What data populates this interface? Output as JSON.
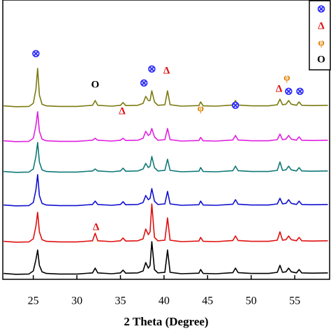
{
  "chart_data": {
    "type": "line",
    "xlabel": "2 Theta (Degree)",
    "xlim": [
      21.5,
      59
    ],
    "xticks": [
      25,
      30,
      35,
      40,
      45,
      50,
      55
    ],
    "ylim": [
      0,
      100
    ],
    "x": [
      21.6,
      23,
      24.5,
      25.0,
      25.3,
      25.5,
      25.7,
      26.0,
      26.5,
      28,
      30,
      31.8,
      32.1,
      32.4,
      34,
      35.0,
      35.3,
      35.6,
      37,
      37.6,
      37.9,
      38.2,
      38.4,
      38.6,
      38.9,
      39.3,
      40.1,
      40.4,
      40.7,
      42,
      44.0,
      44.2,
      44.5,
      46,
      47.9,
      48.2,
      48.5,
      50,
      52,
      53.0,
      53.3,
      53.6,
      54.0,
      54.3,
      54.6,
      55.2,
      55.5,
      55.8,
      57,
      58.8
    ],
    "series": [
      {
        "color": "#000000",
        "values": [
          2.1,
          1.8,
          1.9,
          3,
          7,
          10.5,
          5,
          2.7,
          2.1,
          1.9,
          1.9,
          2.3,
          4,
          2.3,
          2,
          2.3,
          3.3,
          2.2,
          2.3,
          3,
          6,
          4,
          5,
          13.5,
          3.5,
          2.3,
          2.5,
          10.5,
          2.5,
          2,
          2.2,
          3.5,
          2.1,
          2,
          2.4,
          4,
          2.4,
          2.1,
          2.1,
          2.5,
          5,
          2.5,
          2.7,
          4,
          2.7,
          2.3,
          3.5,
          2.3,
          2.2,
          2.3
        ]
      },
      {
        "color": "#e01010",
        "values": [
          13.6,
          13.3,
          13.4,
          14.5,
          19,
          24,
          17,
          14.2,
          13.6,
          13.4,
          13.4,
          13.8,
          16.5,
          13.8,
          13.5,
          13.8,
          14.8,
          13.7,
          13.8,
          14.5,
          18,
          16,
          17,
          27,
          15,
          13.8,
          14,
          22,
          14,
          13.5,
          13.7,
          15,
          13.6,
          13.5,
          13.9,
          15.5,
          13.9,
          13.6,
          13.6,
          14,
          17,
          14,
          14.2,
          15.5,
          14.2,
          13.8,
          15,
          13.8,
          13.7,
          13.8
        ]
      },
      {
        "color": "#1010d0",
        "values": [
          26.6,
          26.3,
          26.4,
          27.5,
          32,
          37.5,
          30,
          27.2,
          26.6,
          26.4,
          26.4,
          26.8,
          28,
          26.8,
          26.5,
          26.8,
          27.8,
          26.7,
          26.8,
          27.5,
          30,
          28.5,
          29,
          32.5,
          28,
          26.8,
          27,
          31.5,
          27,
          26.5,
          26.7,
          28,
          26.6,
          26.5,
          26.9,
          28.5,
          26.9,
          26.6,
          26.6,
          27,
          29,
          27,
          27.2,
          28.5,
          27.2,
          26.8,
          28,
          26.8,
          26.7,
          26.8
        ]
      },
      {
        "color": "#107878",
        "values": [
          38.6,
          38.3,
          38.4,
          39.5,
          44,
          49,
          42,
          39.2,
          38.6,
          38.4,
          38.4,
          38.8,
          39.5,
          38.8,
          38.5,
          38.8,
          39.8,
          38.7,
          38.8,
          39.5,
          41.5,
          40,
          40.5,
          44,
          40,
          38.8,
          39,
          43,
          39,
          38.5,
          38.7,
          40,
          38.6,
          38.5,
          38.9,
          40.5,
          38.9,
          38.6,
          38.6,
          39,
          42,
          39,
          39.2,
          40.5,
          39.2,
          38.8,
          40,
          38.8,
          38.7,
          38.8
        ]
      },
      {
        "color": "#e020e0",
        "values": [
          49.6,
          49.3,
          49.4,
          50.5,
          55,
          60,
          53,
          50.2,
          49.6,
          49.4,
          49.4,
          49.8,
          50.5,
          49.8,
          49.5,
          49.8,
          50.5,
          49.7,
          49.8,
          50.5,
          53,
          51.5,
          52,
          54,
          51,
          49.8,
          50,
          54,
          50,
          49.5,
          49.7,
          50.8,
          49.6,
          49.5,
          49.9,
          51.5,
          49.9,
          49.6,
          49.6,
          50,
          52,
          50,
          50.2,
          51.5,
          50.2,
          49.8,
          51,
          49.8,
          49.7,
          49.8
        ]
      },
      {
        "color": "#7a7a10",
        "values": [
          62.1,
          61.8,
          61.9,
          63,
          68,
          75.5,
          66,
          62.7,
          62.1,
          61.9,
          61.9,
          62.3,
          64,
          62.3,
          62,
          62.3,
          63.3,
          62.2,
          62.3,
          63,
          65.5,
          64,
          64,
          67.5,
          63.5,
          62.3,
          62.5,
          67.5,
          62.5,
          62,
          62.2,
          63.5,
          62.1,
          62,
          62.4,
          64,
          62.4,
          62.1,
          62.1,
          62.5,
          64.5,
          62.5,
          62.7,
          64,
          62.7,
          62.3,
          63.5,
          62.3,
          62.2,
          62.3
        ]
      }
    ],
    "annotations": [
      {
        "text": "⊗",
        "x": 25.3,
        "y": 80.5,
        "color": "#2a2aff"
      },
      {
        "text": "O",
        "x": 32.1,
        "y": 69.5,
        "color": "#000000"
      },
      {
        "text": "Δ",
        "x": 35.2,
        "y": 60,
        "color": "#e01010"
      },
      {
        "text": "⊗",
        "x": 37.7,
        "y": 70,
        "color": "#2a2aff"
      },
      {
        "text": "⊗",
        "x": 38.6,
        "y": 75,
        "color": "#2a2aff"
      },
      {
        "text": "Δ",
        "x": 40.3,
        "y": 74.5,
        "color": "#e01010"
      },
      {
        "text": "φ",
        "x": 44.2,
        "y": 61,
        "color": "#e08000"
      },
      {
        "text": "⊗",
        "x": 48.2,
        "y": 62,
        "color": "#2a2aff"
      },
      {
        "text": "Δ",
        "x": 53.2,
        "y": 68,
        "color": "#e01010"
      },
      {
        "text": "φ",
        "x": 54.1,
        "y": 72,
        "color": "#e08000"
      },
      {
        "text": "⊗",
        "x": 54.3,
        "y": 67,
        "color": "#2a2aff"
      },
      {
        "text": "⊗",
        "x": 55.6,
        "y": 67,
        "color": "#2a2aff"
      },
      {
        "text": "Δ",
        "x": 32.2,
        "y": 18.5,
        "color": "#e01010"
      }
    ],
    "legend": [
      {
        "text": "⊗",
        "color": "#2a2aff"
      },
      {
        "text": "Δ",
        "color": "#e01010"
      },
      {
        "text": "φ",
        "color": "#e08000"
      },
      {
        "text": "O",
        "color": "#000000"
      }
    ]
  }
}
